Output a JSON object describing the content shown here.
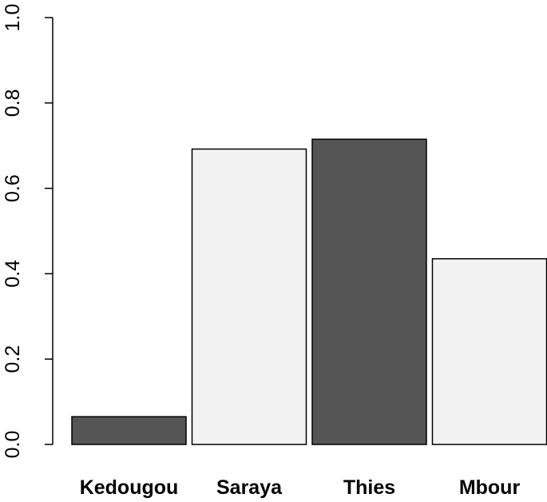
{
  "chart_data": {
    "type": "bar",
    "categories": [
      "Kedougou",
      "Saraya",
      "Thies",
      "Mbour"
    ],
    "values": [
      0.065,
      0.692,
      0.715,
      0.435
    ],
    "bar_colors": [
      "#555555",
      "#f2f2f2",
      "#555555",
      "#f2f2f2"
    ],
    "ylim": [
      0,
      1
    ],
    "yticks": [
      0,
      0.2,
      0.4,
      0.6,
      0.8,
      1
    ],
    "ytick_labels": [
      "0.0",
      "0.2",
      "0.4",
      "0.6",
      "0.8",
      "1.0"
    ],
    "title": "",
    "xlabel": "",
    "ylabel": "",
    "grid": false,
    "legend": false
  }
}
